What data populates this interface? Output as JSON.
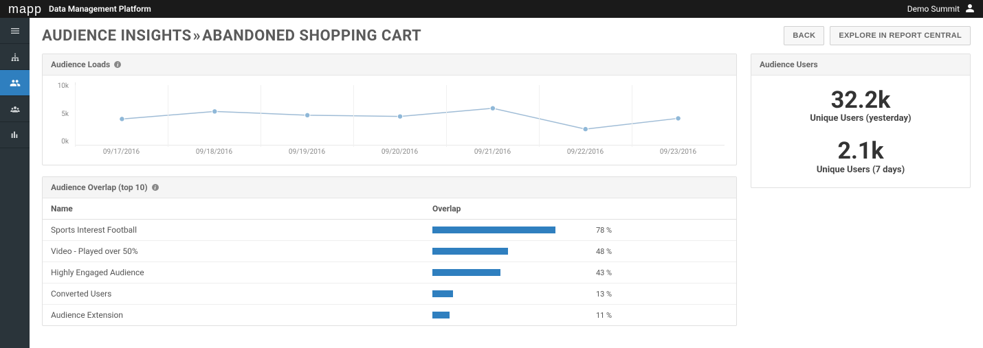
{
  "topbar": {
    "logo_text": "mapp",
    "platform_label": "Data Management Platform",
    "account_name": "Demo Summit"
  },
  "header": {
    "breadcrumb_parent": "AUDIENCE INSIGHTS",
    "breadcrumb_sep": "»",
    "breadcrumb_current": "ABANDONED SHOPPING CART",
    "back_label": "BACK",
    "explore_label": "EXPLORE IN REPORT CENTRAL"
  },
  "colors": {
    "accent": "#2f7fbf",
    "sidebar_bg": "#2a343a",
    "topbar_bg": "#1a1a1a",
    "line": "#9fbcd6",
    "point": "#8fb8d8",
    "grid": "#e8e8e8"
  },
  "loads_chart": {
    "title": "Audience Loads",
    "type": "line",
    "y_ticks": [
      "10k",
      "5k",
      "0k"
    ],
    "ylim": [
      0,
      10000
    ],
    "x_labels": [
      "09/17/2016",
      "09/18/2016",
      "09/19/2016",
      "09/20/2016",
      "09/21/2016",
      "09/22/2016",
      "09/23/2016"
    ],
    "values": [
      4200,
      5400,
      4800,
      4600,
      5900,
      2600,
      4300
    ]
  },
  "users_panel": {
    "title": "Audience Users",
    "metric1_value": "32.2k",
    "metric1_label": "Unique Users (yesterday)",
    "metric2_value": "2.1k",
    "metric2_label": "Unique Users (7 days)"
  },
  "overlap": {
    "title": "Audience Overlap (top 10)",
    "col_name": "Name",
    "col_overlap": "Overlap",
    "bar_color": "#2f7fbf",
    "max_pct": 100,
    "rows": [
      {
        "name": "Sports Interest Football",
        "pct": 78,
        "pct_label": "78 %"
      },
      {
        "name": "Video - Played over 50%",
        "pct": 48,
        "pct_label": "48 %"
      },
      {
        "name": "Highly Engaged Audience",
        "pct": 43,
        "pct_label": "43 %"
      },
      {
        "name": "Converted Users",
        "pct": 13,
        "pct_label": "13 %"
      },
      {
        "name": "Audience Extension",
        "pct": 11,
        "pct_label": "11 %"
      }
    ]
  }
}
